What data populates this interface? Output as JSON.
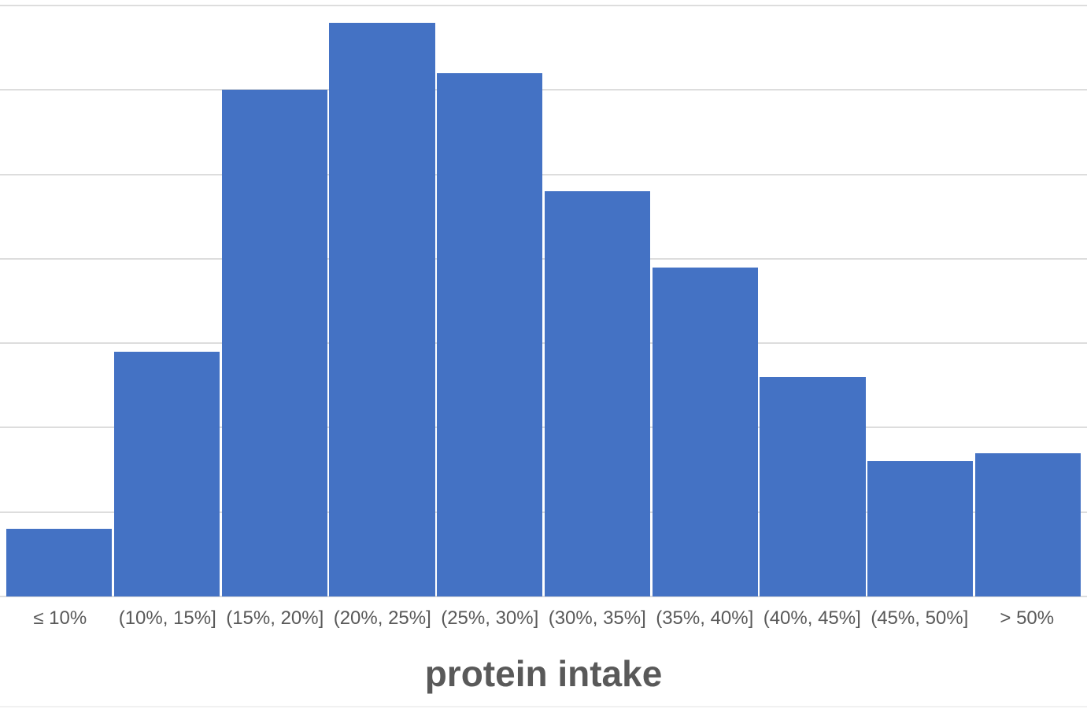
{
  "chart_data": {
    "type": "bar",
    "title": "",
    "xlabel": "protein intake",
    "ylabel": "",
    "categories": [
      "≤ 10%",
      "(10%, 15%]",
      "(15%, 20%]",
      "(20%, 25%]",
      "(25%, 30%]",
      "(30%, 35%]",
      "(35%, 40%]",
      "(40%, 45%]",
      "(45%, 50%]",
      "> 50%"
    ],
    "values": [
      8,
      29,
      60,
      68,
      62,
      48,
      39,
      26,
      16,
      17
    ],
    "ylim": [
      0,
      70
    ],
    "gridline_step": 10,
    "grid": "horizontal",
    "legend": "none",
    "y_axis_labels_visible": false,
    "bar_color": "#4472C4",
    "gridline_color": "#DDDDDD",
    "label_color": "#595959",
    "title_color": "#595959"
  }
}
